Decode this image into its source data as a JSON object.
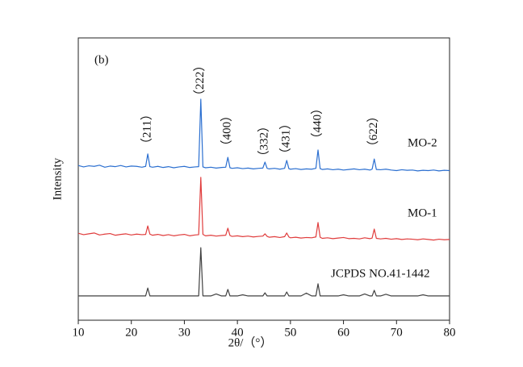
{
  "chart_data": {
    "type": "line",
    "panel_label": "(b)",
    "x_label": "2θ/（°）",
    "y_label": "Intensity",
    "xlim": [
      10,
      80
    ],
    "xticks": [
      10,
      20,
      30,
      40,
      50,
      60,
      70,
      80
    ],
    "ylim": [
      0,
      100
    ],
    "x": [
      10,
      11,
      12,
      13,
      14,
      15,
      16,
      17,
      18,
      19,
      20,
      21,
      22,
      22.7,
      23.1,
      23.5,
      24,
      25,
      26,
      27,
      28,
      29,
      30,
      31,
      32,
      32.7,
      33.1,
      33.5,
      34,
      35,
      36,
      37,
      37.8,
      38.2,
      38.6,
      39,
      40,
      41,
      42,
      43,
      44,
      44.8,
      45.2,
      45.6,
      46,
      47,
      48,
      48.9,
      49.3,
      49.7,
      50,
      51,
      52,
      53,
      54,
      54.8,
      55.2,
      55.6,
      56,
      57,
      58,
      59,
      60,
      61,
      62,
      63,
      64,
      65,
      65.4,
      65.8,
      66.2,
      67,
      68,
      69,
      70,
      71,
      72,
      73,
      74,
      75,
      76,
      77,
      78,
      79,
      80
    ],
    "series": [
      {
        "name": "MO-2",
        "color": "#2b6fd0",
        "values": [
          54.8,
          54.3,
          54.7,
          54.5,
          54.9,
          54.2,
          54.6,
          54.4,
          54.8,
          54.3,
          54.6,
          54.5,
          54.2,
          54.5,
          58.9,
          54.4,
          54.2,
          54.5,
          54.1,
          54.4,
          54.0,
          54.3,
          54.5,
          54.1,
          54.3,
          54.4,
          78.3,
          54.3,
          54.0,
          54.2,
          53.9,
          54.1,
          54.2,
          57.7,
          54.0,
          53.8,
          54.0,
          53.7,
          53.9,
          53.6,
          53.8,
          53.9,
          56.0,
          53.8,
          53.6,
          53.8,
          53.5,
          53.8,
          56.6,
          53.7,
          53.5,
          53.7,
          53.4,
          53.6,
          53.5,
          53.8,
          60.3,
          53.7,
          53.4,
          53.6,
          53.3,
          53.5,
          53.2,
          53.4,
          53.6,
          53.3,
          53.5,
          53.2,
          53.5,
          57.1,
          53.4,
          53.3,
          53.5,
          53.2,
          53.0,
          53.3,
          53.1,
          53.2,
          52.9,
          53.1,
          53.0,
          53.2,
          52.9,
          53.1,
          53.0
        ]
      },
      {
        "name": "MO-1",
        "color": "#e03c3c",
        "values": [
          30.8,
          30.3,
          30.6,
          30.9,
          30.2,
          30.5,
          30.7,
          30.1,
          30.4,
          30.6,
          30.2,
          30.5,
          30.3,
          30.4,
          33.4,
          30.5,
          30.1,
          30.4,
          30.0,
          30.3,
          29.9,
          30.2,
          30.4,
          29.9,
          30.2,
          30.3,
          50.6,
          30.4,
          29.9,
          30.1,
          29.8,
          30.0,
          30.1,
          32.6,
          30.0,
          29.7,
          29.9,
          29.6,
          29.8,
          29.5,
          29.7,
          29.8,
          30.6,
          29.7,
          29.4,
          29.6,
          29.3,
          29.6,
          30.9,
          29.5,
          29.2,
          29.4,
          29.1,
          29.3,
          29.2,
          29.5,
          34.6,
          29.4,
          29.0,
          29.2,
          28.9,
          29.1,
          29.3,
          28.9,
          29.0,
          28.8,
          29.2,
          28.9,
          29.1,
          32.3,
          29.0,
          28.8,
          29.0,
          28.7,
          28.9,
          28.6,
          28.8,
          28.7,
          28.5,
          28.8,
          28.6,
          28.4,
          28.7,
          28.5,
          28.6
        ]
      },
      {
        "name": "JCPDS  NO.41-1442",
        "color": "#404040",
        "values": [
          8.6,
          8.6,
          8.6,
          8.6,
          8.6,
          8.6,
          8.6,
          8.6,
          8.6,
          8.6,
          8.6,
          8.6,
          8.6,
          8.6,
          11.4,
          8.6,
          8.6,
          8.6,
          8.6,
          8.6,
          8.6,
          8.6,
          8.6,
          8.6,
          8.6,
          8.6,
          25.7,
          8.6,
          8.6,
          8.6,
          9.3,
          8.6,
          8.6,
          10.9,
          8.6,
          8.6,
          8.6,
          9.0,
          8.6,
          8.6,
          8.6,
          8.6,
          9.7,
          8.6,
          8.6,
          8.6,
          8.6,
          8.6,
          10.0,
          8.6,
          8.6,
          8.6,
          8.6,
          9.6,
          8.6,
          8.6,
          12.9,
          8.6,
          8.6,
          8.6,
          8.6,
          8.6,
          9.0,
          8.6,
          8.6,
          8.6,
          9.3,
          8.6,
          8.6,
          10.6,
          8.6,
          8.6,
          9.2,
          8.6,
          8.6,
          8.6,
          8.6,
          8.6,
          8.6,
          9.0,
          8.6,
          8.6,
          8.6,
          8.6,
          8.6
        ]
      }
    ],
    "annotations": [
      {
        "text": "（211）",
        "x": 23.1,
        "y": 67.7
      },
      {
        "text": "（222）",
        "x": 33.1,
        "y": 84.9
      },
      {
        "text": "（400）",
        "x": 38.2,
        "y": 67.1
      },
      {
        "text": "（332）",
        "x": 45.2,
        "y": 63.4
      },
      {
        "text": "（431）",
        "x": 49.3,
        "y": 64.3
      },
      {
        "text": "（440）",
        "x": 55.2,
        "y": 69.7
      },
      {
        "text": "（622）",
        "x": 65.8,
        "y": 66.9
      }
    ]
  }
}
